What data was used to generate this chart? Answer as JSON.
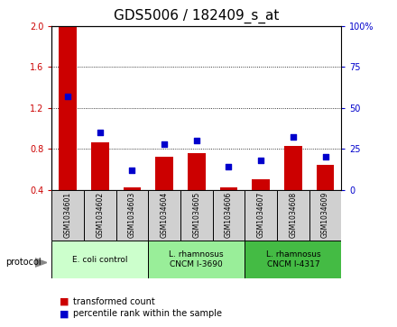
{
  "title": "GDS5006 / 182409_s_at",
  "samples": [
    "GSM1034601",
    "GSM1034602",
    "GSM1034603",
    "GSM1034604",
    "GSM1034605",
    "GSM1034606",
    "GSM1034607",
    "GSM1034608",
    "GSM1034609"
  ],
  "transformed_count": [
    2.0,
    0.86,
    0.42,
    0.72,
    0.76,
    0.42,
    0.5,
    0.83,
    0.64
  ],
  "percentile_rank": [
    57,
    35,
    12,
    28,
    30,
    14,
    18,
    32,
    20
  ],
  "ylim_left": [
    0.4,
    2.0
  ],
  "ylim_right": [
    0,
    100
  ],
  "yticks_left": [
    0.4,
    0.8,
    1.2,
    1.6,
    2.0
  ],
  "yticks_right": [
    0,
    25,
    50,
    75,
    100
  ],
  "bar_color": "#cc0000",
  "dot_color": "#0000cc",
  "protocol_groups": [
    {
      "label": "E. coli control",
      "start": 0,
      "end": 3,
      "color": "#ccffcc"
    },
    {
      "label": "L. rhamnosus\nCNCM I-3690",
      "start": 3,
      "end": 6,
      "color": "#99ee99"
    },
    {
      "label": "L. rhamnosus\nCNCM I-4317",
      "start": 6,
      "end": 9,
      "color": "#44bb44"
    }
  ],
  "legend_items": [
    {
      "label": "transformed count",
      "color": "#cc0000"
    },
    {
      "label": "percentile rank within the sample",
      "color": "#0000cc"
    }
  ],
  "protocol_label": "protocol",
  "title_fontsize": 11,
  "tick_fontsize": 7,
  "sample_fontsize": 5.5,
  "proto_fontsize": 6.5,
  "legend_fontsize": 7
}
